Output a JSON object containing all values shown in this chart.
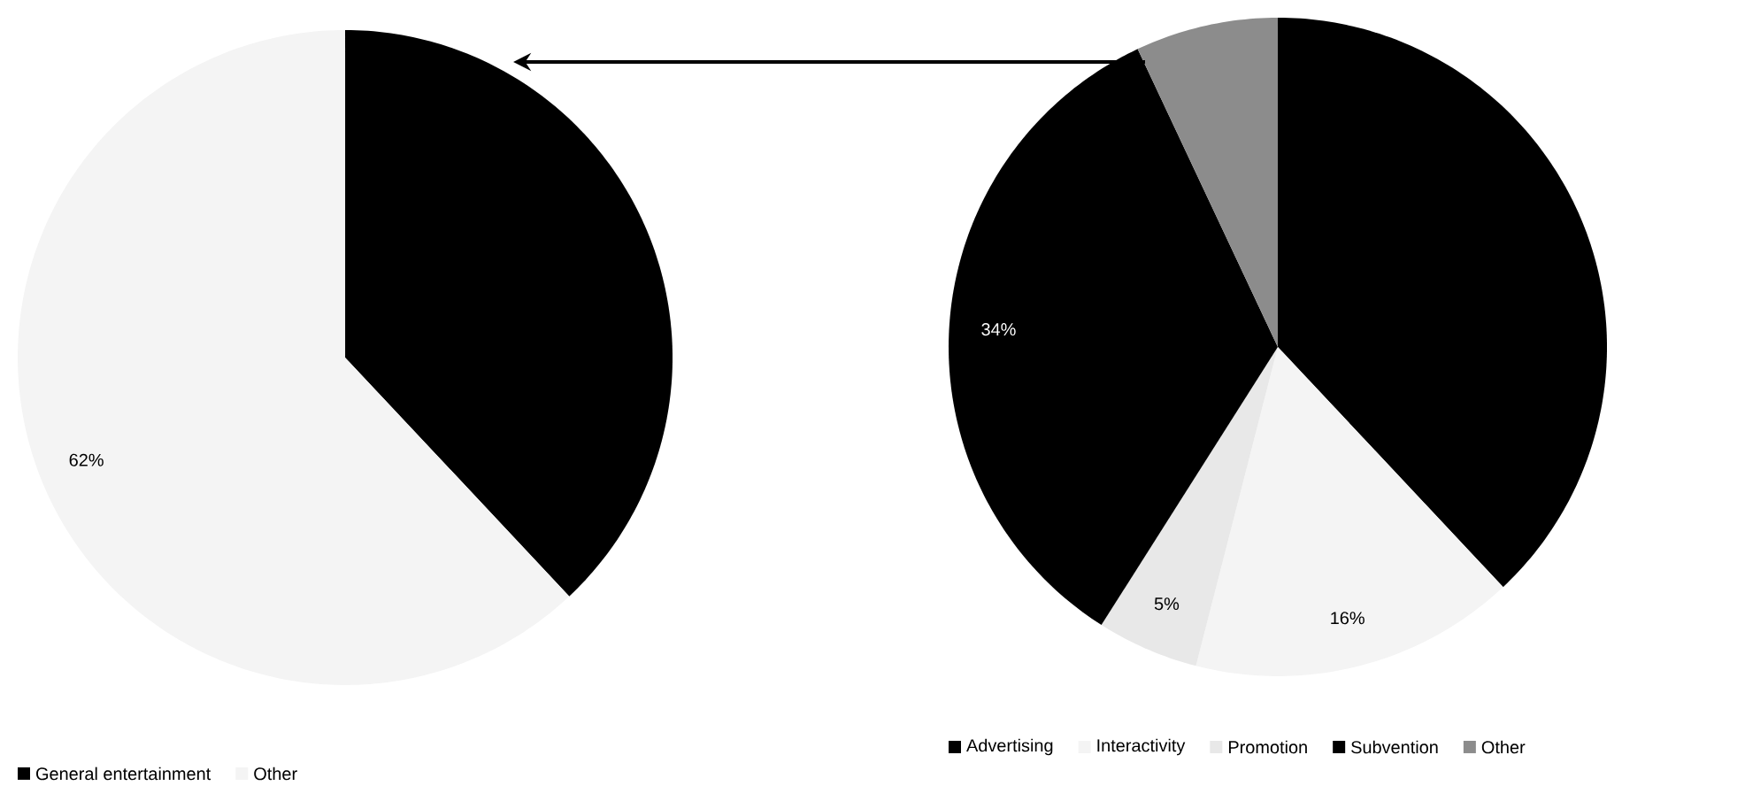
{
  "chart_data": [
    {
      "type": "pie",
      "categories": [
        "General entertainment",
        "Other"
      ],
      "values": [
        38,
        62
      ],
      "colors": [
        "#000000",
        "#f4f4f4"
      ],
      "value_labels": [
        null,
        "62%"
      ],
      "legend": "bottom"
    },
    {
      "type": "pie",
      "categories": [
        "Advertising",
        "Interactivity",
        "Promotion",
        "Subvention",
        "Other"
      ],
      "values": [
        38,
        16,
        5,
        34,
        7
      ],
      "colors": [
        "#000000",
        "#f4f4f4",
        "#e8e8e8",
        "#000000",
        "#8c8c8c"
      ],
      "value_labels": [
        null,
        "16%",
        "5%",
        "34%",
        null
      ],
      "legend": "bottom"
    }
  ]
}
